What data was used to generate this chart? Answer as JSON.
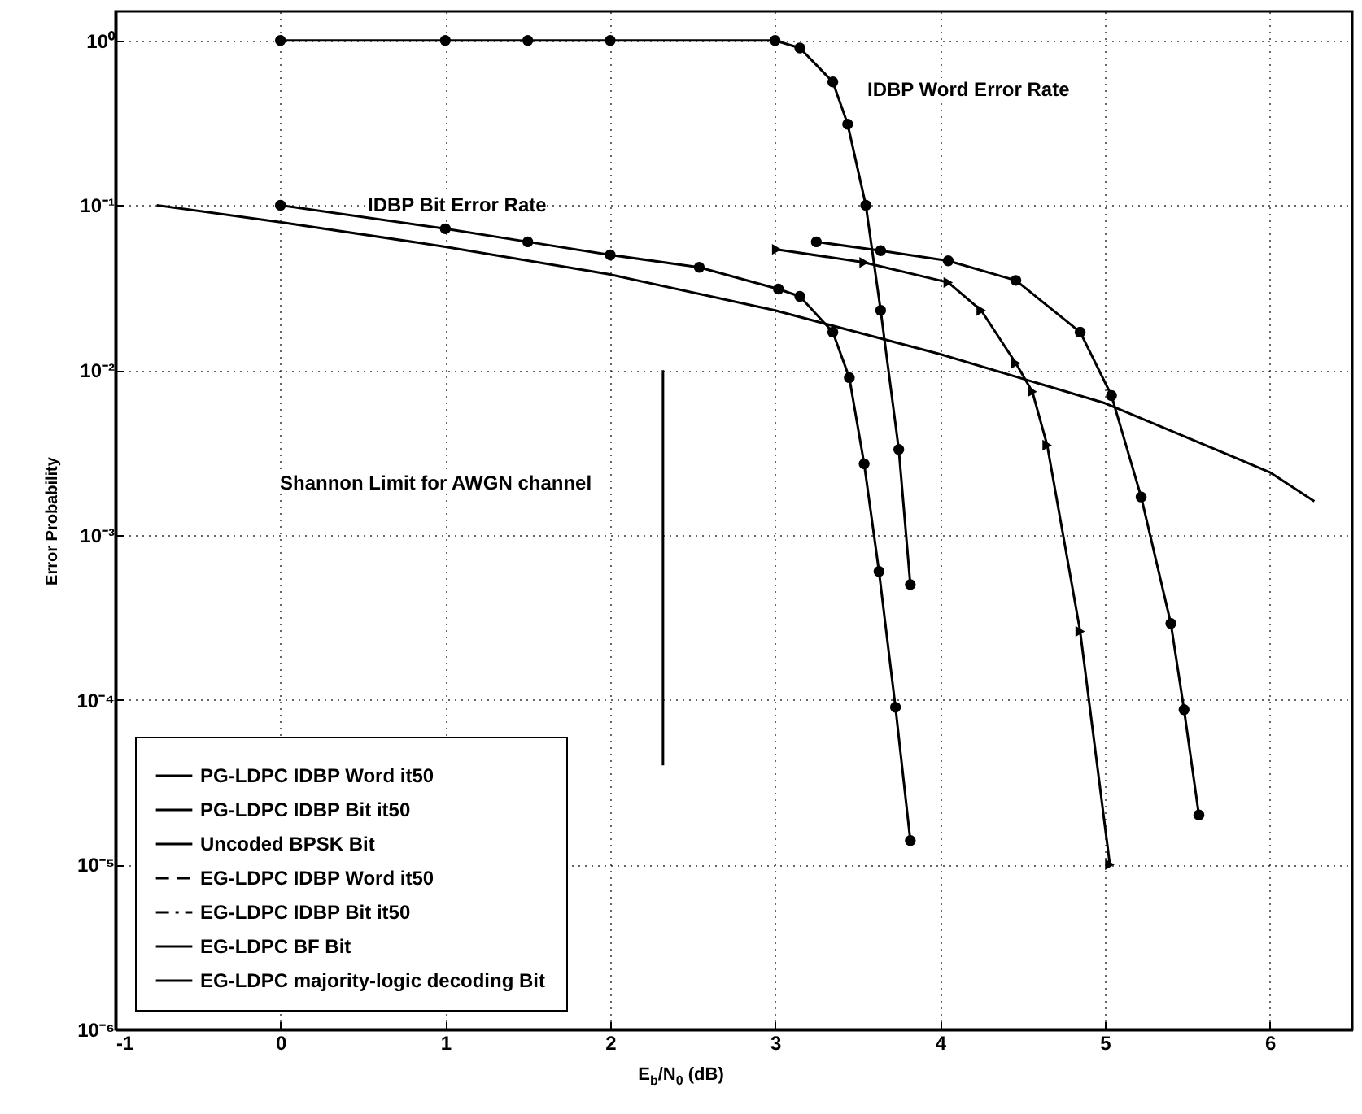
{
  "chart_data": {
    "type": "line",
    "xlabel": "E$_{b}$/N$_{0}$ (dB)",
    "ylabel": "Error Probability",
    "log": "y",
    "xlim": [
      -1,
      6.5
    ],
    "xticks": [
      -1,
      0,
      1,
      2,
      3,
      4,
      5,
      6
    ],
    "ylim": [
      1e-06,
      1.5
    ],
    "yticks": [
      {
        "value": 1e-06,
        "label": "10⁻⁶"
      },
      {
        "value": 1e-05,
        "label": "10⁻⁵"
      },
      {
        "value": 0.0001,
        "label": "10⁻⁴"
      },
      {
        "value": 0.001,
        "label": "10⁻³"
      },
      {
        "value": 0.01,
        "label": "10⁻²"
      },
      {
        "value": 0.1,
        "label": "10⁻¹"
      },
      {
        "value": 1,
        "label": "10⁰"
      }
    ],
    "grid": true,
    "legend": "bottom left",
    "series": [
      {
        "name": "PG-LDPC IDBP Word it50",
        "color": "#000000",
        "marker": "circle",
        "line_style": "solid",
        "x": [
          0,
          1,
          1.5,
          2,
          3,
          3.15,
          3.35,
          3.44,
          3.55,
          3.64,
          3.75,
          3.82
        ],
        "values": [
          1,
          1,
          1,
          1,
          1,
          0.9,
          0.56,
          0.31,
          0.1,
          0.023,
          0.0033,
          0.0005
        ]
      },
      {
        "name": "PG-LDPC IDBP Bit it50",
        "color": "#000000",
        "marker": "circle",
        "line_style": "solid",
        "x": [
          0,
          1,
          1.5,
          2,
          2.54,
          3.02,
          3.15,
          3.35,
          3.45,
          3.54,
          3.63,
          3.73,
          3.82
        ],
        "values": [
          0.1,
          0.072,
          0.06,
          0.05,
          0.042,
          0.031,
          0.028,
          0.017,
          0.009,
          0.0027,
          0.0006,
          9e-05,
          1.4e-05
        ]
      },
      {
        "name": "Uncoded BPSK Bit",
        "color": "#000000",
        "marker": "none",
        "line_style": "solid",
        "x": [
          -0.75,
          0,
          1,
          2,
          3,
          4,
          5,
          6,
          6.27
        ],
        "values": [
          0.1,
          0.079,
          0.056,
          0.038,
          0.023,
          0.0125,
          0.0063,
          0.0024,
          0.0016
        ]
      },
      {
        "name": "EG-LDPC IDBP Word it50",
        "color": "#000000",
        "marker": "none",
        "line_style": "dashed"
      },
      {
        "name": "EG-LDPC IDBP Bit it50",
        "color": "#000000",
        "marker": "none",
        "line_style": "dashdot"
      },
      {
        "name": "EG-LDPC BF Bit",
        "color": "#000000",
        "marker": "triangle",
        "line_style": "solid",
        "x": [
          3.01,
          3.54,
          4.05,
          4.25,
          4.46,
          4.56,
          4.65,
          4.85,
          5.03
        ],
        "values": [
          0.054,
          0.045,
          0.034,
          0.023,
          0.011,
          0.0074,
          0.0035,
          0.00026,
          1e-05
        ]
      },
      {
        "name": "EG-LDPC majority-logic decoding Bit",
        "color": "#000000",
        "marker": "circle",
        "line_style": "solid",
        "x": [
          3.25,
          3.64,
          4.05,
          4.46,
          4.85,
          5.04,
          5.22,
          5.4,
          5.48,
          5.57
        ],
        "values": [
          0.06,
          0.053,
          0.046,
          0.035,
          0.017,
          0.007,
          0.0017,
          0.00029,
          8.7e-05,
          2e-05
        ]
      },
      {
        "color": "#000000",
        "marker": "none",
        "line_style": "solid",
        "x": [
          2.32,
          2.32
        ],
        "values": [
          0.01,
          4e-05
        ]
      }
    ],
    "annotations": [
      "IDBP Word Error Rate",
      "IDBP Bit Error Rate",
      "Shannon Limit for AWGN channel"
    ]
  }
}
